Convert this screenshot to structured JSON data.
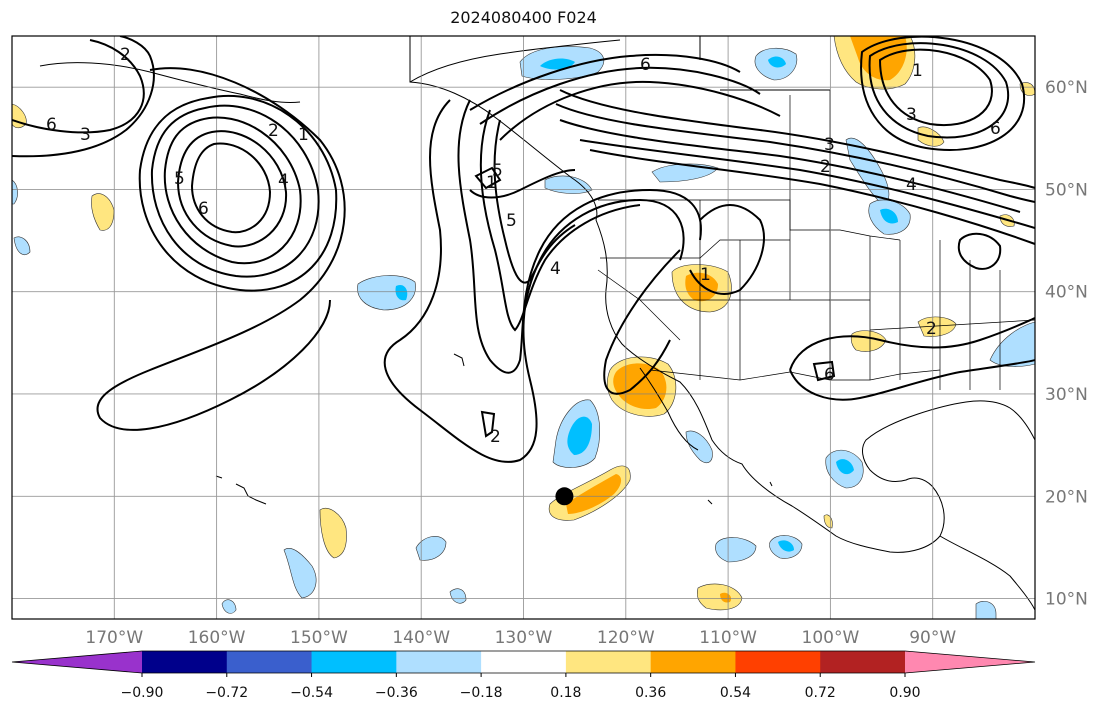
{
  "title": "2024080400 F024",
  "map": {
    "lon_range": [
      -180,
      -80
    ],
    "lat_range": [
      8,
      65
    ],
    "lon_ticks": [
      {
        "value": -170,
        "label": "170°W"
      },
      {
        "value": -160,
        "label": "160°W"
      },
      {
        "value": -150,
        "label": "150°W"
      },
      {
        "value": -140,
        "label": "140°W"
      },
      {
        "value": -130,
        "label": "130°W"
      },
      {
        "value": -120,
        "label": "120°W"
      },
      {
        "value": -110,
        "label": "110°W"
      },
      {
        "value": -100,
        "label": "100°W"
      },
      {
        "value": -90,
        "label": "90°W"
      }
    ],
    "lat_ticks": [
      {
        "value": 10,
        "label": "10°N"
      },
      {
        "value": 20,
        "label": "20°N"
      },
      {
        "value": 30,
        "label": "30°N"
      },
      {
        "value": 40,
        "label": "40°N"
      },
      {
        "value": 50,
        "label": "50°N"
      },
      {
        "value": 60,
        "label": "60°N"
      }
    ],
    "marker": {
      "lon": -126,
      "lat": 20
    }
  },
  "colorbar": {
    "colors": [
      "#9932cc",
      "#00008b",
      "#3a5fcd",
      "#00bfff",
      "#afdfff",
      "#ffffff",
      "#ffe680",
      "#ffa500",
      "#ff4000",
      "#b22222",
      "#ff88b0"
    ],
    "labels": [
      "−0.90",
      "−0.72",
      "−0.54",
      "−0.36",
      "−0.18",
      "0.18",
      "0.36",
      "0.54",
      "0.72",
      "0.90"
    ]
  },
  "contour_labels": [
    "6",
    "3",
    "1",
    "2",
    "4",
    "5",
    "6",
    "2",
    "1",
    "4",
    "5",
    "6",
    "2",
    "3",
    "6",
    "1",
    "2",
    "3",
    "4",
    "6",
    "1",
    "5",
    "2"
  ]
}
